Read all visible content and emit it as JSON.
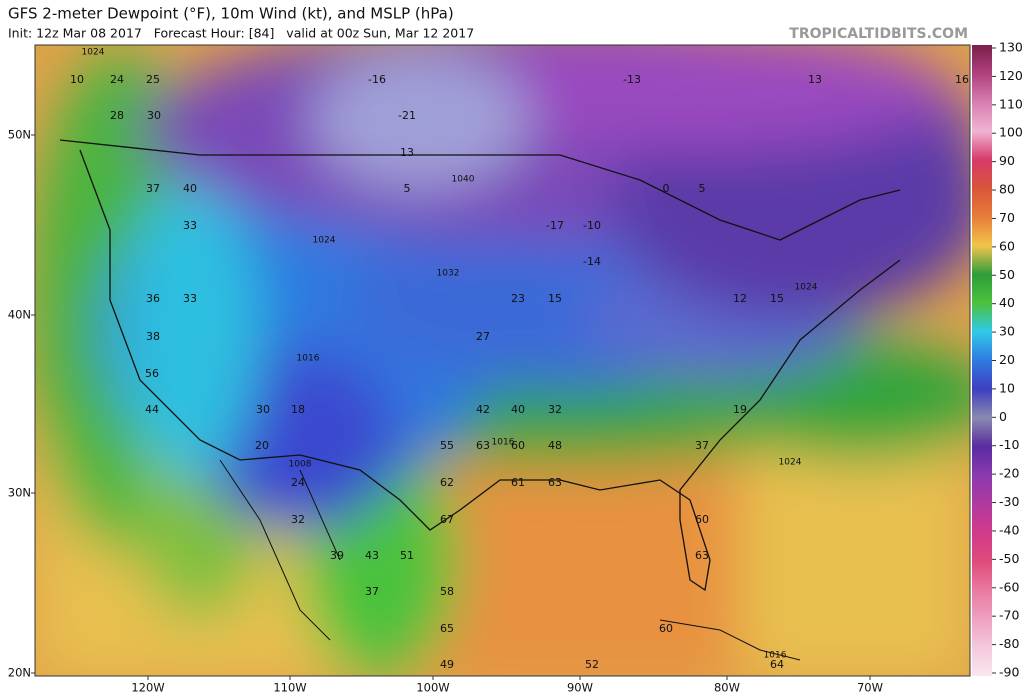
{
  "header": {
    "title": "GFS 2-meter Dewpoint (°F), 10m Wind (kt), and MSLP (hPa)",
    "subtitle": "Init: 12z Mar 08 2017   Forecast Hour: [84]   valid at 00z Sun, Mar 12 2017",
    "source": "TROPICALTIDBITS.COM"
  },
  "map": {
    "latitudes": [
      "50N",
      "40N",
      "30N",
      "20N"
    ],
    "longitudes": [
      "120W",
      "110W",
      "100W",
      "90W",
      "80W",
      "70W"
    ],
    "dewpoints": [
      10,
      24,
      25,
      28,
      30,
      37,
      40,
      33,
      36,
      33,
      38,
      56,
      44,
      30,
      18,
      20,
      24,
      32,
      39,
      37,
      43,
      51,
      58,
      65,
      49,
      55,
      62,
      63,
      67,
      61,
      63,
      60,
      48,
      32,
      42,
      40,
      27,
      23,
      15,
      -10,
      -14,
      -17,
      0,
      5,
      -13,
      13,
      16,
      12,
      15,
      19,
      37,
      60,
      63,
      60,
      64,
      52,
      -21,
      -16,
      13,
      5
    ],
    "pressures": [
      1024,
      1040,
      1032,
      1024,
      1016,
      1008,
      1016,
      1024,
      1024,
      1016
    ]
  },
  "colorbar": {
    "ticks": [
      130,
      120,
      110,
      100,
      90,
      80,
      70,
      60,
      50,
      40,
      30,
      20,
      10,
      0,
      -10,
      -20,
      -30,
      -40,
      -50,
      -60,
      -70,
      -80,
      -90
    ],
    "colors": [
      "#7a1f4a",
      "#b0407e",
      "#d77fb0",
      "#f0b3d3",
      "#d63a6a",
      "#d9553a",
      "#e77d3a",
      "#f2c44a",
      "#2f9d3a",
      "#4cc23c",
      "#2fc9e8",
      "#2f7ae0",
      "#3f3fc0",
      "#8a8ab0",
      "#5a2ba0",
      "#8a3ab0",
      "#b03aa0",
      "#d23a8a",
      "#e04a7a",
      "#e87aa0",
      "#efa0c0",
      "#f5c8dc",
      "#fbe6f0"
    ]
  }
}
